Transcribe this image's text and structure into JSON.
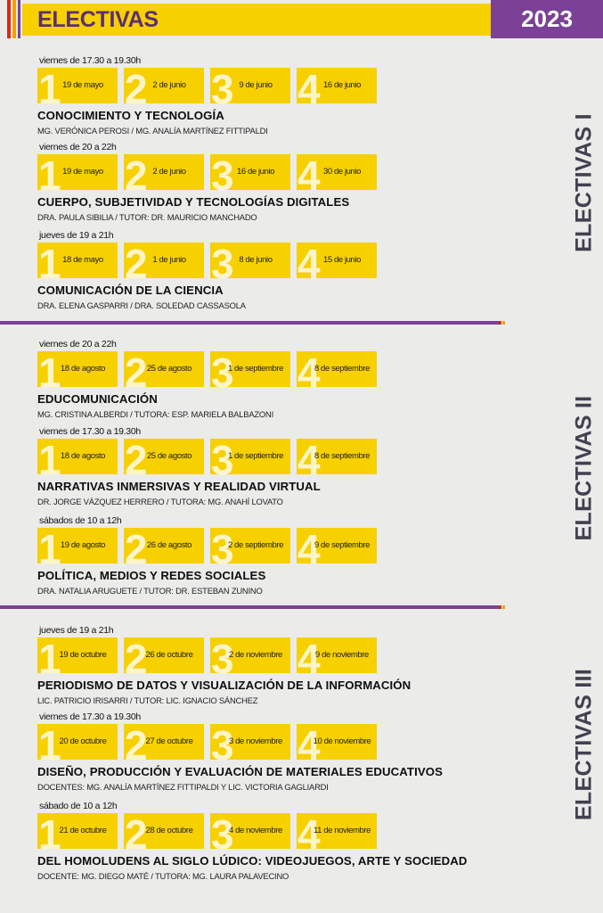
{
  "header": {
    "title": "ELECTIVAS",
    "year": "2023",
    "colors": {
      "yellow": "#f7d000",
      "purple": "#7a4196",
      "red": "#d42a1b",
      "orange": "#f2a100"
    }
  },
  "groups": [
    {
      "label": "ELECTIVAS I",
      "courses": [
        {
          "time": "viernes de 17.30 a 19.30h",
          "dates": [
            {
              "num": "1",
              "text": "19 de mayo"
            },
            {
              "num": "2",
              "text": "2 de junio"
            },
            {
              "num": "3",
              "text": "9 de junio"
            },
            {
              "num": "4",
              "text": "16 de junio"
            }
          ],
          "title": "CONOCIMIENTO Y TECNOLOGÍA",
          "professors": "MG. VERÓNICA PEROSI / MG. ANALÍA MARTÍNEZ FITTIPALDI"
        },
        {
          "time": "viernes de 20 a 22h",
          "dates": [
            {
              "num": "1",
              "text": "19 de mayo"
            },
            {
              "num": "2",
              "text": "2 de junio"
            },
            {
              "num": "3",
              "text": "16 de junio"
            },
            {
              "num": "4",
              "text": "30 de junio"
            }
          ],
          "title": "CUERPO, SUBJETIVIDAD Y TECNOLOGÍAS DIGITALES",
          "professors": "DRA. PAULA SIBILIA / TUTOR: DR. MAURICIO MANCHADO"
        },
        {
          "time": "jueves de 19 a 21h",
          "dates": [
            {
              "num": "1",
              "text": "18 de mayo"
            },
            {
              "num": "2",
              "text": "1 de junio"
            },
            {
              "num": "3",
              "text": "8 de junio"
            },
            {
              "num": "4",
              "text": "15 de junio"
            }
          ],
          "title": "COMUNICACIÓN DE LA CIENCIA",
          "professors": "DRA. ELENA GASPARRI / DRA. SOLEDAD CASSASOLA"
        }
      ]
    },
    {
      "label": "ELECTIVAS II",
      "courses": [
        {
          "time": "viernes de 20 a 22h",
          "dates": [
            {
              "num": "1",
              "text": "18 de agosto"
            },
            {
              "num": "2",
              "text": "25 de agosto"
            },
            {
              "num": "3",
              "text": "1 de septiembre"
            },
            {
              "num": "4",
              "text": "8 de septiembre"
            }
          ],
          "title": "EDUCOMUNICACIÓN",
          "professors": "MG. CRISTINA ALBERDI / TUTORA: ESP. MARIELA BALBAZONI"
        },
        {
          "time": "viernes de 17.30 a 19.30h",
          "dates": [
            {
              "num": "1",
              "text": "18 de agosto"
            },
            {
              "num": "2",
              "text": "25 de agosto"
            },
            {
              "num": "3",
              "text": "1 de septiembre"
            },
            {
              "num": "4",
              "text": "8 de septiembre"
            }
          ],
          "title": "NARRATIVAS INMERSIVAS Y REALIDAD VIRTUAL",
          "professors": "DR. JORGE VÁZQUEZ HERRERO / TUTORA: MG. ANAHÍ LOVATO"
        },
        {
          "time": "sábados de 10 a 12h",
          "dates": [
            {
              "num": "1",
              "text": "19 de agosto"
            },
            {
              "num": "2",
              "text": "26 de agosto"
            },
            {
              "num": "3",
              "text": "2 de septiembre"
            },
            {
              "num": "4",
              "text": "9 de septiembre"
            }
          ],
          "title": "POLÍTICA, MEDIOS Y REDES SOCIALES",
          "professors": "DRA. NATALIA ARUGUETE / TUTOR: DR. ESTEBAN ZUNINO"
        }
      ]
    },
    {
      "label": "ELECTIVAS III",
      "courses": [
        {
          "time": "jueves de 19 a 21h",
          "dates": [
            {
              "num": "1",
              "text": "19 de octubre"
            },
            {
              "num": "2",
              "text": "26 de octubre"
            },
            {
              "num": "3",
              "text": "2 de noviembre"
            },
            {
              "num": "4",
              "text": "9 de noviembre"
            }
          ],
          "title": "PERIODISMO DE DATOS Y VISUALIZACIÓN DE LA INFORMACIÓN",
          "professors": "LIC. PATRICIO IRISARRI / TUTOR: LIC. IGNACIO SÁNCHEZ"
        },
        {
          "time": "viernes de 17.30 a 19.30h",
          "dates": [
            {
              "num": "1",
              "text": "20 de octubre"
            },
            {
              "num": "2",
              "text": "27 de octubre"
            },
            {
              "num": "3",
              "text": "3 de noviembre"
            },
            {
              "num": "4",
              "text": "10 de noviembre"
            }
          ],
          "title": "DISEÑO, PRODUCCIÓN Y EVALUACIÓN DE MATERIALES EDUCATIVOS",
          "professors": "DOCENTES: MG. ANALÍA MARTÍNEZ FITTIPALDI Y LIC. VICTORIA GAGLIARDI"
        },
        {
          "time": "sábado de 10 a 12h",
          "dates": [
            {
              "num": "1",
              "text": "21 de octubre"
            },
            {
              "num": "2",
              "text": "28 de octubre"
            },
            {
              "num": "3",
              "text": "4 de noviembre"
            },
            {
              "num": "4",
              "text": "11 de noviembre"
            }
          ],
          "title": "DEL HOMOLUDENS AL SIGLO LÚDICO: VIDEOJUEGOS, ARTE Y SOCIEDAD",
          "professors": "DOCENTE: MG. DIEGO MATÉ / TUTORA: MG. LAURA PALAVECINO"
        }
      ]
    }
  ]
}
